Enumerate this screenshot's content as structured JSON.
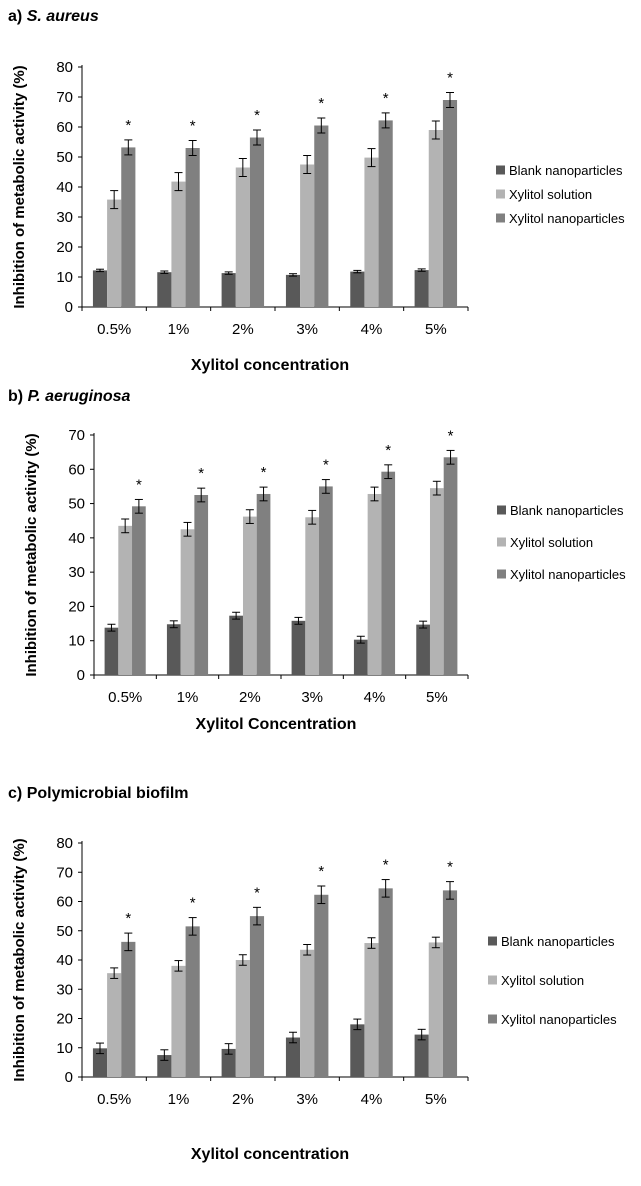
{
  "chart_data": [
    {
      "type": "bar",
      "title_prefix": "a)",
      "title": "S. aureus",
      "title_italic": true,
      "xlabel": "Xylitol concentration",
      "ylabel": "Inhibition of metabolic activity (%)",
      "ylim": [
        0,
        80
      ],
      "yticks": [
        0,
        10,
        20,
        30,
        40,
        50,
        60,
        70,
        80
      ],
      "grid": false,
      "legend_position": "right",
      "categories": [
        "0.5%",
        "1%",
        "2%",
        "3%",
        "4%",
        "5%"
      ],
      "series": [
        {
          "name": "Blank nanoparticles",
          "color": "#595959",
          "values": [
            12.2,
            11.6,
            11.3,
            10.7,
            11.8,
            12.3
          ],
          "errors": [
            0.4,
            0.4,
            0.4,
            0.4,
            0.4,
            0.4
          ]
        },
        {
          "name": "Xylitol solution",
          "color": "#b3b3b3",
          "values": [
            35.8,
            41.8,
            46.5,
            47.5,
            49.8,
            59.0
          ],
          "errors": [
            3.0,
            3.0,
            3.0,
            3.0,
            3.0,
            3.0
          ]
        },
        {
          "name": "Xylitol nanoparticles",
          "color": "#808080",
          "values": [
            53.2,
            53.0,
            56.5,
            60.5,
            62.2,
            69.0
          ],
          "errors": [
            2.5,
            2.5,
            2.5,
            2.5,
            2.5,
            2.5
          ]
        }
      ],
      "annotations": [
        "*",
        "*",
        "*",
        "*",
        "*",
        "*"
      ]
    },
    {
      "type": "bar",
      "title_prefix": "b)",
      "title": "P. aeruginosa",
      "title_italic": true,
      "xlabel": "Xylitol Concentration",
      "ylabel": "Inhibition of metabolic activity (%)",
      "ylim": [
        0,
        70
      ],
      "yticks": [
        0,
        10,
        20,
        30,
        40,
        50,
        60,
        70
      ],
      "grid": false,
      "legend_position": "right",
      "categories": [
        "0.5%",
        "1%",
        "2%",
        "3%",
        "4%",
        "5%"
      ],
      "series": [
        {
          "name": "Blank nanoparticles",
          "color": "#595959",
          "values": [
            13.8,
            14.8,
            17.3,
            15.8,
            10.3,
            14.7
          ],
          "errors": [
            1.0,
            1.0,
            1.0,
            1.0,
            1.0,
            1.0
          ]
        },
        {
          "name": "Xylitol solution",
          "color": "#b3b3b3",
          "values": [
            43.5,
            42.5,
            46.2,
            46.0,
            52.8,
            54.5
          ],
          "errors": [
            2.0,
            2.0,
            2.0,
            2.0,
            2.0,
            2.0
          ]
        },
        {
          "name": "Xylitol nanoparticles",
          "color": "#808080",
          "values": [
            49.2,
            52.5,
            52.8,
            55.0,
            59.3,
            63.5
          ],
          "errors": [
            2.0,
            2.0,
            2.0,
            2.0,
            2.0,
            2.0
          ]
        }
      ],
      "annotations": [
        "*",
        "*",
        "*",
        "*",
        "*",
        "*"
      ]
    },
    {
      "type": "bar",
      "title_prefix": "c)",
      "title": "Polymicrobial biofilm",
      "title_italic": false,
      "xlabel": "Xylitol concentration",
      "ylabel": "Inhibition of metabolic activity (%)",
      "ylim": [
        0,
        80
      ],
      "yticks": [
        0,
        10,
        20,
        30,
        40,
        50,
        60,
        70,
        80
      ],
      "grid": false,
      "legend_position": "right",
      "categories": [
        "0.5%",
        "1%",
        "2%",
        "3%",
        "4%",
        "5%"
      ],
      "series": [
        {
          "name": "Blank nanoparticles",
          "color": "#595959",
          "values": [
            9.8,
            7.5,
            9.6,
            13.5,
            18.0,
            14.5
          ],
          "errors": [
            1.8,
            1.8,
            1.8,
            1.8,
            1.8,
            1.8
          ]
        },
        {
          "name": "Xylitol solution",
          "color": "#b3b3b3",
          "values": [
            35.5,
            38.0,
            40.0,
            43.5,
            45.8,
            46.0
          ],
          "errors": [
            1.8,
            1.8,
            1.8,
            1.8,
            1.8,
            1.8
          ]
        },
        {
          "name": "Xylitol nanoparticles",
          "color": "#808080",
          "values": [
            46.2,
            51.5,
            55.0,
            62.3,
            64.5,
            63.8
          ],
          "errors": [
            3.0,
            3.0,
            3.0,
            3.0,
            3.0,
            3.0
          ]
        }
      ],
      "annotations": [
        "*",
        "*",
        "*",
        "*",
        "*",
        "*"
      ]
    }
  ]
}
